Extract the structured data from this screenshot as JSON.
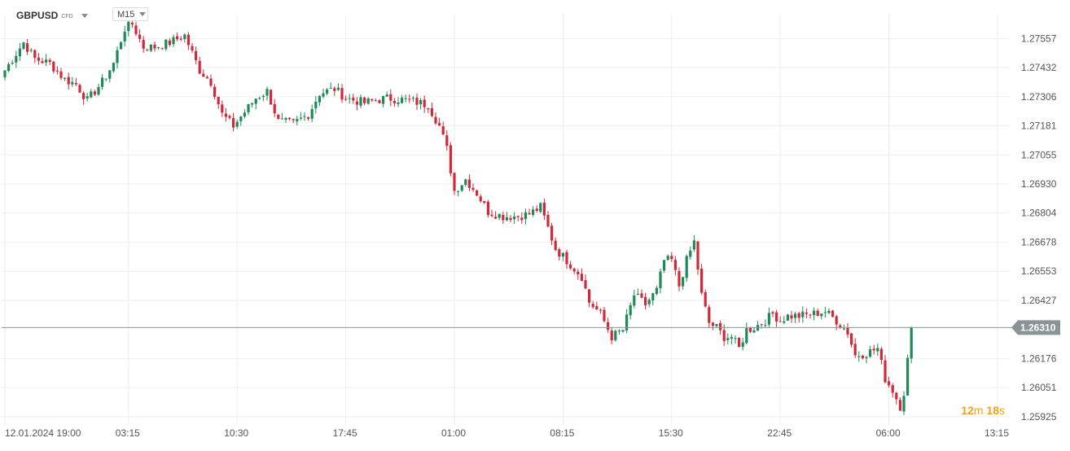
{
  "header": {
    "symbol": "GBPUSD",
    "instrument_type": "CFD",
    "timeframe": "M15"
  },
  "countdown": {
    "minutes": "12",
    "minutes_unit": "m",
    "seconds": "18",
    "seconds_unit": "s"
  },
  "colors": {
    "up": "#1e8a58",
    "down": "#d2283a",
    "grid": "#eeeeee",
    "current_price_line": "#8a9497",
    "current_price_tag": "#8a9497",
    "countdown": "#f2a01e"
  },
  "chart_data": {
    "type": "candlestick",
    "symbol": "GBPUSD",
    "timeframe": "M15",
    "current_price": 1.2631,
    "current_price_label": "1.26310",
    "ylim": [
      1.2589,
      1.2766
    ],
    "y_ticks": [
      {
        "value": 1.25925,
        "label": "1.25925"
      },
      {
        "value": 1.26051,
        "label": "1.26051"
      },
      {
        "value": 1.26176,
        "label": "1.26176"
      },
      {
        "value": 1.26427,
        "label": "1.26427"
      },
      {
        "value": 1.26553,
        "label": "1.26553"
      },
      {
        "value": 1.26678,
        "label": "1.26678"
      },
      {
        "value": 1.26804,
        "label": "1.26804"
      },
      {
        "value": 1.2693,
        "label": "1.26930"
      },
      {
        "value": 1.27055,
        "label": "1.27055"
      },
      {
        "value": 1.27181,
        "label": "1.27181"
      },
      {
        "value": 1.27306,
        "label": "1.27306"
      },
      {
        "value": 1.27432,
        "label": "1.27432"
      },
      {
        "value": 1.27557,
        "label": "1.27557"
      }
    ],
    "x_ticks": [
      {
        "label": "12.01.2024  19:00",
        "bar_index": 0
      },
      {
        "label": "03:15",
        "bar_index": 33
      },
      {
        "label": "10:30",
        "bar_index": 62
      },
      {
        "label": "17:45",
        "bar_index": 91
      },
      {
        "label": "01:00",
        "bar_index": 120
      },
      {
        "label": "08:15",
        "bar_index": 149
      },
      {
        "label": "15:30",
        "bar_index": 178
      },
      {
        "label": "22:45",
        "bar_index": 207
      },
      {
        "label": "06:00",
        "bar_index": 236
      },
      {
        "label": "13:15",
        "bar_index": 265
      }
    ],
    "bar_anchor": {
      "bar_index": 0,
      "time": "19:00",
      "date": "12.01.2024"
    },
    "bar_minutes": 15,
    "anchors": [
      [
        0,
        1.2742
      ],
      [
        5,
        1.2754
      ],
      [
        8,
        1.2747
      ],
      [
        12,
        1.2745
      ],
      [
        16,
        1.2738
      ],
      [
        19,
        1.2736
      ],
      [
        22,
        1.2729
      ],
      [
        26,
        1.2737
      ],
      [
        29,
        1.2745
      ],
      [
        32,
        1.276
      ],
      [
        34,
        1.2762
      ],
      [
        37,
        1.2752
      ],
      [
        40,
        1.2752
      ],
      [
        44,
        1.2754
      ],
      [
        48,
        1.2757
      ],
      [
        52,
        1.2742
      ],
      [
        55,
        1.2737
      ],
      [
        58,
        1.2723
      ],
      [
        61,
        1.2718
      ],
      [
        63,
        1.2722
      ],
      [
        67,
        1.273
      ],
      [
        70,
        1.2733
      ],
      [
        73,
        1.272
      ],
      [
        77,
        1.2719
      ],
      [
        81,
        1.2723
      ],
      [
        84,
        1.2732
      ],
      [
        88,
        1.2734
      ],
      [
        91,
        1.273
      ],
      [
        96,
        1.2728
      ],
      [
        102,
        1.273
      ],
      [
        108,
        1.2729
      ],
      [
        113,
        1.2727
      ],
      [
        116,
        1.2718
      ],
      [
        118,
        1.2708
      ],
      [
        120,
        1.269
      ],
      [
        123,
        1.2695
      ],
      [
        126,
        1.2689
      ],
      [
        129,
        1.2681
      ],
      [
        133,
        1.2679
      ],
      [
        137,
        1.2679
      ],
      [
        140,
        1.268
      ],
      [
        143,
        1.2683
      ],
      [
        145,
        1.2674
      ],
      [
        147,
        1.2665
      ],
      [
        150,
        1.266
      ],
      [
        154,
        1.2653
      ],
      [
        156,
        1.2642
      ],
      [
        159,
        1.2637
      ],
      [
        162,
        1.2627
      ],
      [
        165,
        1.263
      ],
      [
        168,
        1.2645
      ],
      [
        171,
        1.2641
      ],
      [
        174,
        1.2647
      ],
      [
        176,
        1.266
      ],
      [
        178,
        1.266
      ],
      [
        180,
        1.2649
      ],
      [
        182,
        1.266
      ],
      [
        184,
        1.2668
      ],
      [
        186,
        1.2645
      ],
      [
        188,
        1.2633
      ],
      [
        190,
        1.2631
      ],
      [
        192,
        1.2627
      ],
      [
        194,
        1.2627
      ],
      [
        196,
        1.2622
      ],
      [
        198,
        1.263
      ],
      [
        200,
        1.2631
      ],
      [
        203,
        1.2634
      ],
      [
        205,
        1.2637
      ],
      [
        207,
        1.2634
      ],
      [
        209,
        1.2636
      ],
      [
        212,
        1.2636
      ],
      [
        216,
        1.2637
      ],
      [
        219,
        1.2638
      ],
      [
        222,
        1.2634
      ],
      [
        225,
        1.2629
      ],
      [
        227,
        1.2619
      ],
      [
        230,
        1.262
      ],
      [
        233,
        1.2622
      ],
      [
        235,
        1.2609
      ],
      [
        237,
        1.2604
      ],
      [
        239,
        1.2597
      ],
      [
        240,
        1.2603
      ],
      [
        242,
        1.2631
      ]
    ]
  }
}
